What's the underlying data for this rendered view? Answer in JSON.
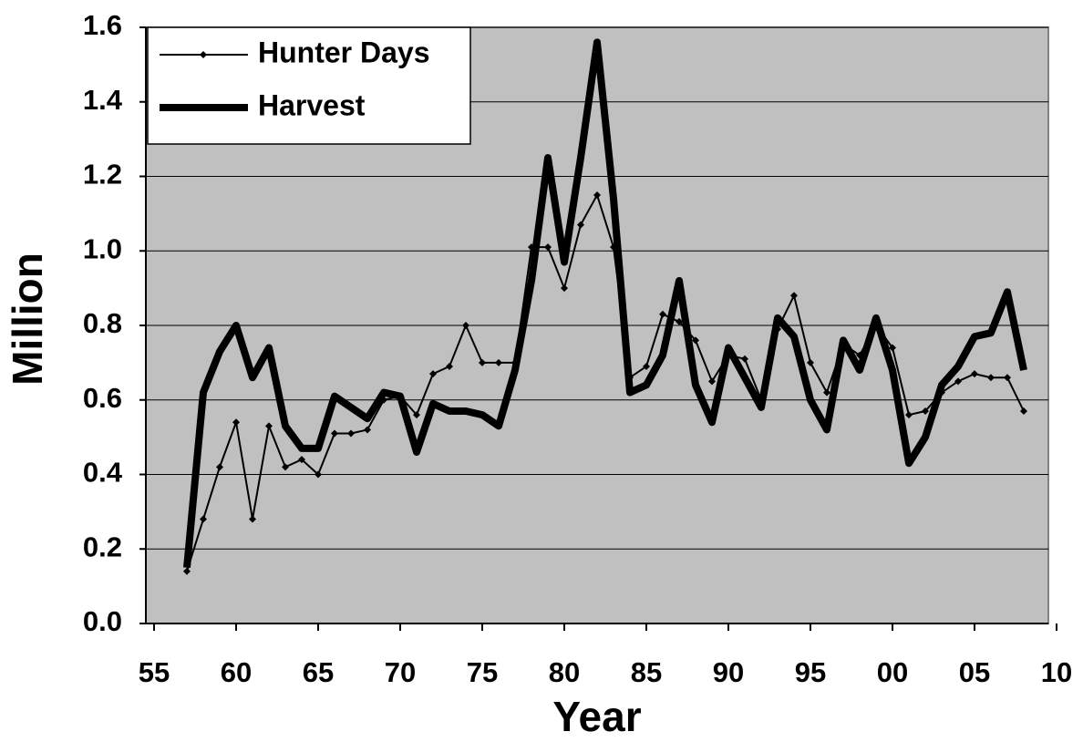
{
  "chart_data": {
    "type": "line",
    "xlabel": "Year",
    "ylabel": "Million",
    "x": [
      1957,
      1958,
      1959,
      1960,
      1961,
      1962,
      1963,
      1964,
      1965,
      1966,
      1967,
      1968,
      1969,
      1970,
      1971,
      1972,
      1973,
      1974,
      1975,
      1976,
      1977,
      1978,
      1979,
      1980,
      1981,
      1982,
      1983,
      1984,
      1985,
      1986,
      1987,
      1988,
      1989,
      1990,
      1991,
      1992,
      1993,
      1994,
      1995,
      1996,
      1997,
      1998,
      1999,
      2000,
      2001,
      2002,
      2003,
      2004,
      2005,
      2006,
      2007,
      2008
    ],
    "series": [
      {
        "name": "Hunter Days",
        "color": "#000000",
        "values": [
          0.14,
          0.28,
          0.42,
          0.54,
          0.28,
          0.53,
          0.42,
          0.44,
          0.4,
          0.51,
          0.51,
          0.52,
          0.6,
          0.61,
          0.56,
          0.67,
          0.69,
          0.8,
          0.7,
          0.7,
          0.7,
          1.01,
          1.01,
          0.9,
          1.07,
          1.15,
          1.01,
          0.66,
          0.69,
          0.83,
          0.81,
          0.76,
          0.65,
          0.72,
          0.71,
          0.6,
          0.79,
          0.88,
          0.7,
          0.62,
          0.75,
          0.72,
          0.8,
          0.74,
          0.56,
          0.57,
          0.62,
          0.65,
          0.67,
          0.66,
          0.66,
          0.57
        ]
      },
      {
        "name": "Harvest",
        "color": "#000000",
        "values": [
          0.15,
          0.62,
          0.73,
          0.8,
          0.66,
          0.74,
          0.53,
          0.47,
          0.47,
          0.61,
          0.58,
          0.55,
          0.62,
          0.61,
          0.46,
          0.59,
          0.57,
          0.57,
          0.56,
          0.53,
          0.68,
          0.92,
          1.25,
          0.97,
          1.25,
          1.56,
          1.14,
          0.62,
          0.64,
          0.72,
          0.92,
          0.64,
          0.54,
          0.74,
          0.66,
          0.58,
          0.82,
          0.77,
          0.6,
          0.52,
          0.76,
          0.68,
          0.82,
          0.68,
          0.43,
          0.5,
          0.64,
          0.69,
          0.77,
          0.78,
          0.89,
          0.68
        ]
      }
    ],
    "xlim": [
      1954.5,
      2009.5
    ],
    "xticks": [
      {
        "value": 1955,
        "label": "55"
      },
      {
        "value": 1960,
        "label": "60"
      },
      {
        "value": 1965,
        "label": "65"
      },
      {
        "value": 1970,
        "label": "70"
      },
      {
        "value": 1975,
        "label": "75"
      },
      {
        "value": 1980,
        "label": "80"
      },
      {
        "value": 1985,
        "label": "85"
      },
      {
        "value": 1990,
        "label": "90"
      },
      {
        "value": 1995,
        "label": "95"
      },
      {
        "value": 2000,
        "label": "00"
      },
      {
        "value": 2005,
        "label": "05"
      },
      {
        "value": 2010,
        "label": "10"
      }
    ],
    "ylim": [
      0,
      1.6
    ],
    "yticks": [
      {
        "value": 0,
        "label": "0.0"
      },
      0.2,
      0.4,
      0.6,
      0.8,
      {
        "value": 1,
        "label": "1.0"
      },
      1.2,
      1.4,
      1.6
    ],
    "grid": true,
    "legend": "upper left"
  }
}
